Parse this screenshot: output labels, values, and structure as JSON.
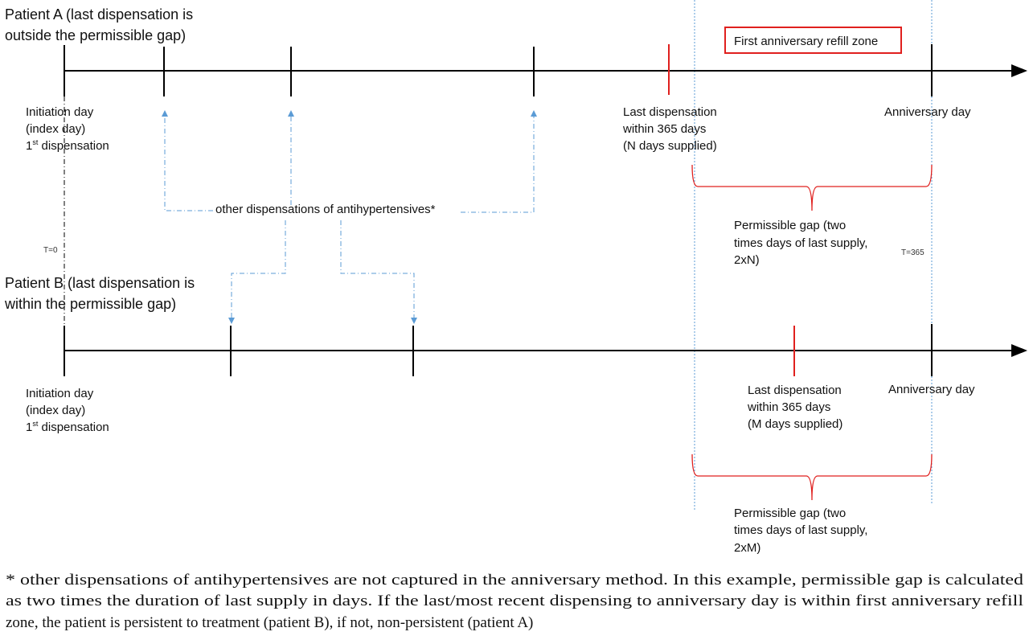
{
  "colors": {
    "axis": "#000000",
    "last_dispensation": "#e0201e",
    "connector": "#5b9bd5",
    "zone_box": "#e0201e"
  },
  "patient_a": {
    "title_line1": "Patient A (last dispensation is",
    "title_line2": "outside the permissible gap)",
    "initiation": {
      "line1": "Initiation day",
      "line2": "(index day)",
      "line3_num": "1",
      "line3_sup": "st",
      "line3_rest": " dispensation"
    },
    "last": {
      "line1": "Last dispensation",
      "line2": "within 365 days",
      "line3": "(N days supplied)"
    },
    "anniversary": "Anniversary day",
    "gap": {
      "line1": "Permissible gap (two",
      "line2": "times days of last supply,",
      "line3": "2xN)"
    }
  },
  "patient_b": {
    "title_line1": "Patient B (last dispensation is",
    "title_line2": "within the permissible gap)",
    "initiation": {
      "line1": "Initiation day",
      "line2": "(index day)",
      "line3_num": "1",
      "line3_sup": "st",
      "line3_rest": " dispensation"
    },
    "last": {
      "line1": "Last dispensation",
      "line2": "within 365 days",
      "line3": "(M days supplied)"
    },
    "anniversary": "Anniversary day",
    "gap": {
      "line1": "Permissible gap (two",
      "line2": "times days of last supply,",
      "line3": "2xM)"
    }
  },
  "zone_label": "First anniversary refill zone",
  "other_dispensations": "other dispensations of antihypertensives*",
  "t0": "T=0",
  "t365": "T=365",
  "footnote": {
    "line1": "* other dispensations of antihypertensives are not captured in the anniversary method. In this example, permissible gap is calculated",
    "line2": "as two times the duration of last supply in days. If the last/most recent dispensing to anniversary day is within first anniversary refill",
    "line3": "zone, the patient is persistent to treatment (patient B), if not, non-persistent (patient A)"
  }
}
